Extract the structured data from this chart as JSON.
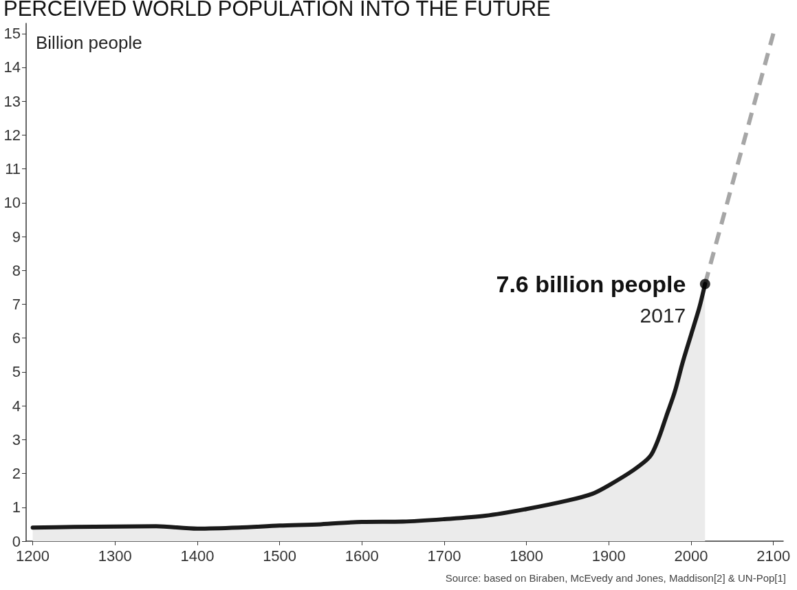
{
  "chart_data": {
    "type": "area",
    "title": "PERCEIVED WORLD POPULATION INTO THE FUTURE",
    "ylabel": "Billion people",
    "xlim": [
      1192,
      2112
    ],
    "xticks": [
      1200,
      1300,
      1400,
      1500,
      1600,
      1700,
      1800,
      1900,
      2000,
      2100
    ],
    "ylim": [
      0,
      15.3
    ],
    "yticks": [
      0,
      1,
      2,
      3,
      4,
      5,
      6,
      7,
      8,
      9,
      10,
      11,
      12,
      13,
      14,
      15
    ],
    "grid": false,
    "series": [
      {
        "color": "#1a1a1a",
        "x": [
          1200,
          1250,
          1300,
          1350,
          1400,
          1450,
          1500,
          1550,
          1600,
          1650,
          1700,
          1750,
          1800,
          1850,
          1880,
          1900,
          1930,
          1950,
          1960,
          1970,
          1980,
          1990,
          2000,
          2010,
          2017
        ],
        "values": [
          0.4,
          0.42,
          0.43,
          0.44,
          0.37,
          0.4,
          0.46,
          0.5,
          0.57,
          0.58,
          0.65,
          0.75,
          0.95,
          1.2,
          1.4,
          1.65,
          2.1,
          2.5,
          3.0,
          3.7,
          4.4,
          5.3,
          6.1,
          6.9,
          7.6
        ]
      },
      {
        "type": "line",
        "color": "#a6a6a6",
        "line_style": "dashed",
        "x": [
          2017,
          2100
        ],
        "values": [
          7.6,
          15
        ]
      },
      {
        "type": "scatter",
        "color": "#000000",
        "x": [
          2017
        ],
        "values": [
          7.6
        ]
      }
    ],
    "annotations": [
      {
        "text": "7.6 billion people",
        "x": 2017,
        "y": 7.6
      },
      {
        "text": "2017",
        "x": 2017,
        "y": 7.6
      },
      "Source: based on Biraben, McEvedy and Jones, Maddison[2] & UN-Pop[1]"
    ]
  }
}
